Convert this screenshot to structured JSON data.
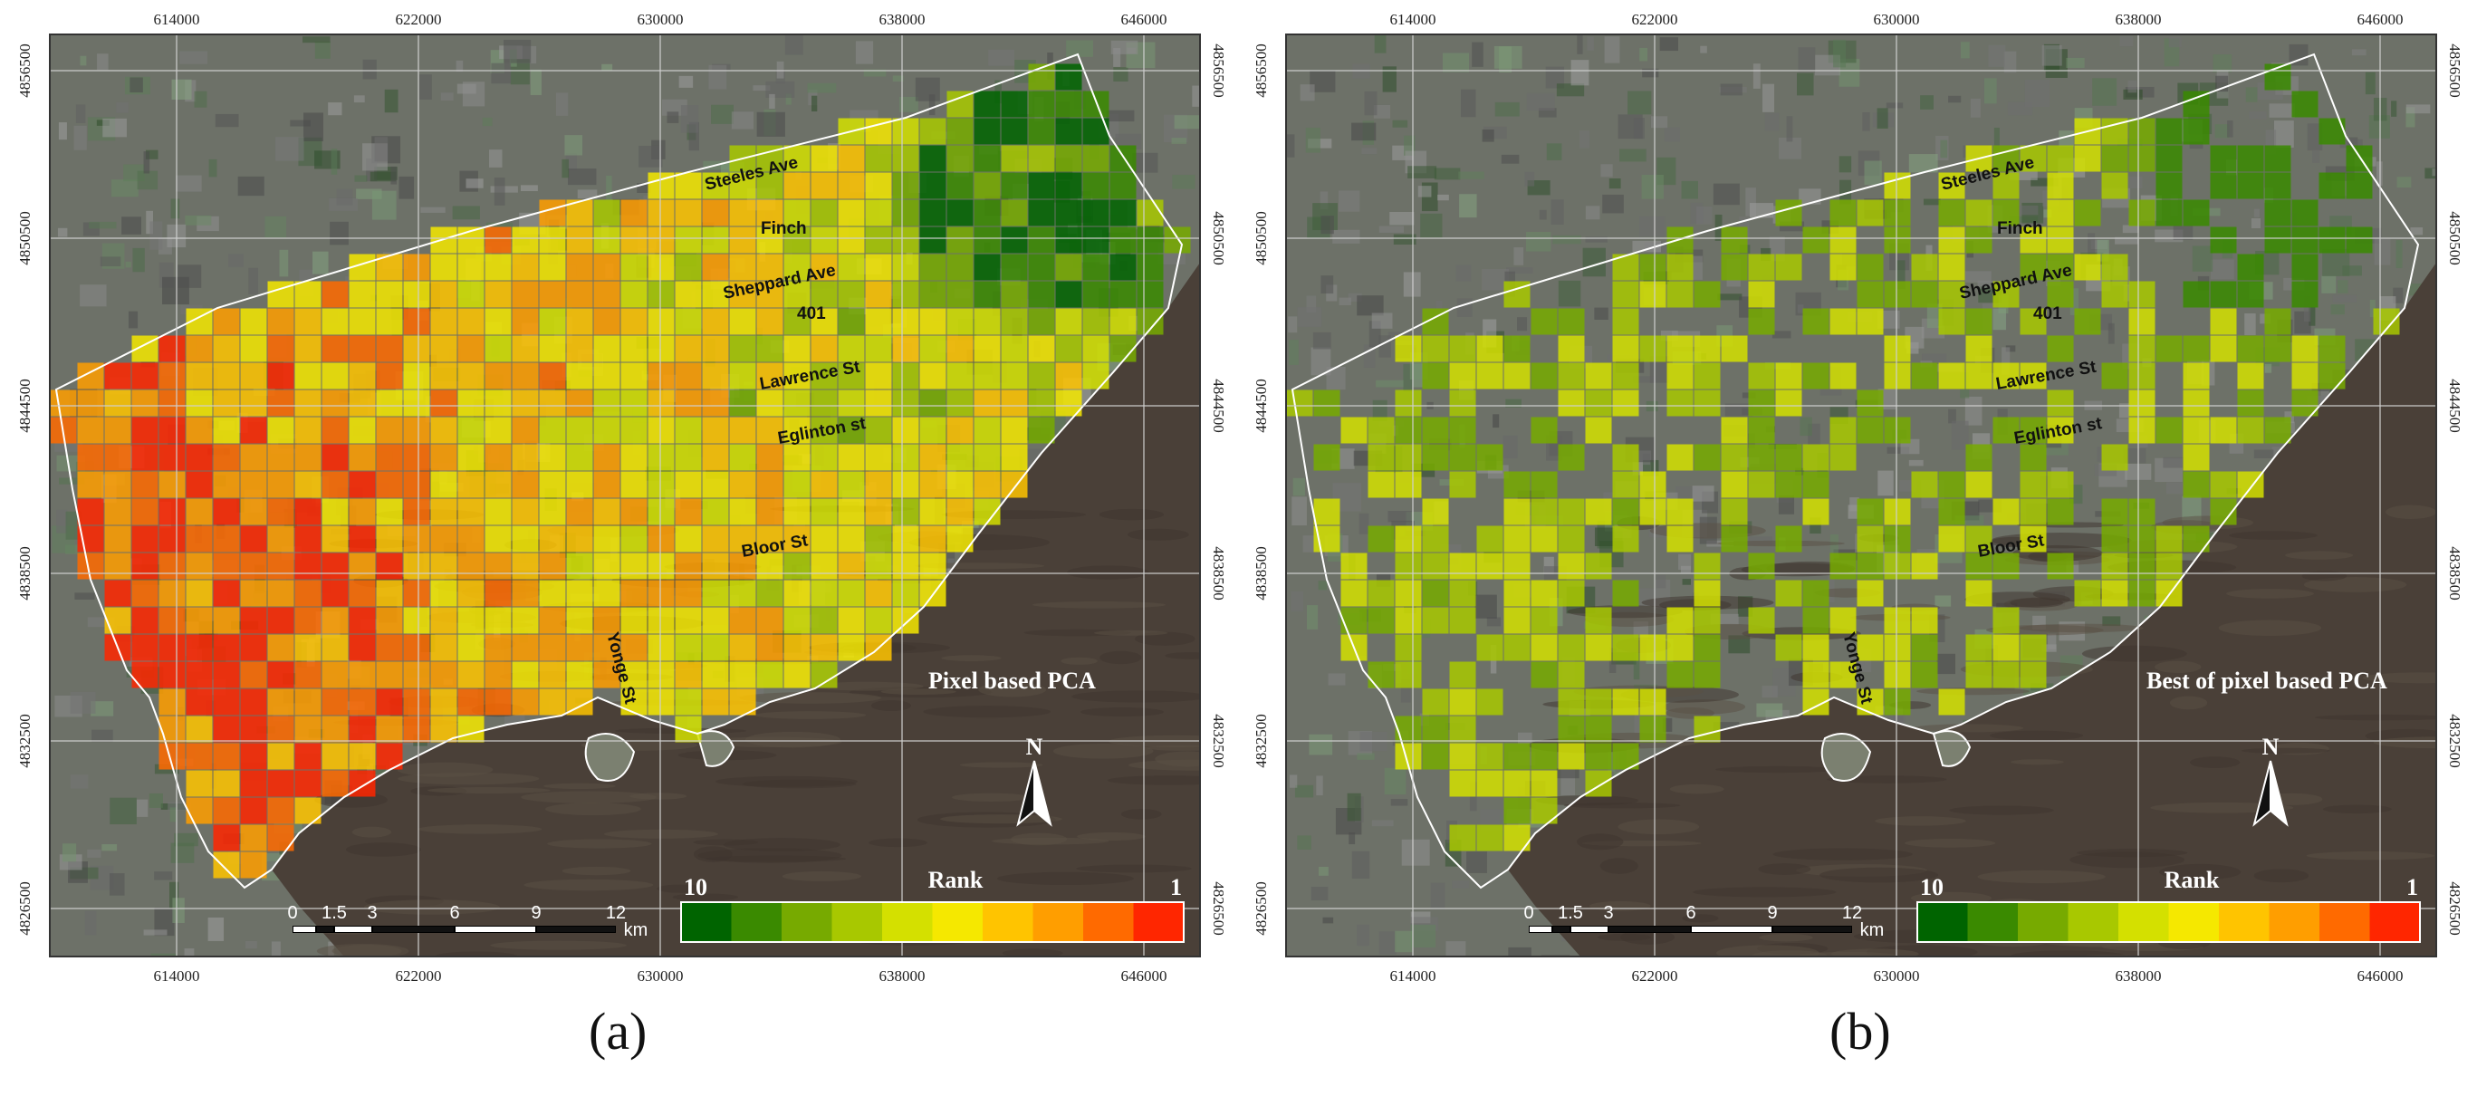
{
  "x_ticks": [
    "614000",
    "622000",
    "630000",
    "638000",
    "646000"
  ],
  "y_ticks": [
    "4856500",
    "4850500",
    "4844500",
    "4838500",
    "4832500",
    "4826500"
  ],
  "roads": [
    {
      "name": "Steeles Ave"
    },
    {
      "name": "Finch"
    },
    {
      "name": "Sheppard Ave"
    },
    {
      "name": "401"
    },
    {
      "name": "Lawrence St"
    },
    {
      "name": "Eglinton st"
    },
    {
      "name": "Bloor St"
    },
    {
      "name": "Yonge St"
    }
  ],
  "panels": [
    {
      "id": "a",
      "title": "Pixel based PCA",
      "caption": "(a)"
    },
    {
      "id": "b",
      "title": "Best of pixel based PCA",
      "caption": "(b)"
    }
  ],
  "legend": {
    "title": "Rank",
    "high": "10",
    "low": "1",
    "colors": [
      "#006400",
      "#3a8a00",
      "#77aa00",
      "#a8c800",
      "#d4e000",
      "#f5e800",
      "#ffc400",
      "#ff9e00",
      "#ff6a00",
      "#ff2600"
    ]
  },
  "scalebar": {
    "labels": [
      "0",
      "1.5",
      "3",
      "6",
      "9",
      "12"
    ],
    "unit": "km"
  },
  "north_arrow": "N",
  "colors": {
    "water": "#4a4038",
    "land": "#6d7168",
    "grid": "#cfcfcf",
    "border": "#ffffff"
  }
}
